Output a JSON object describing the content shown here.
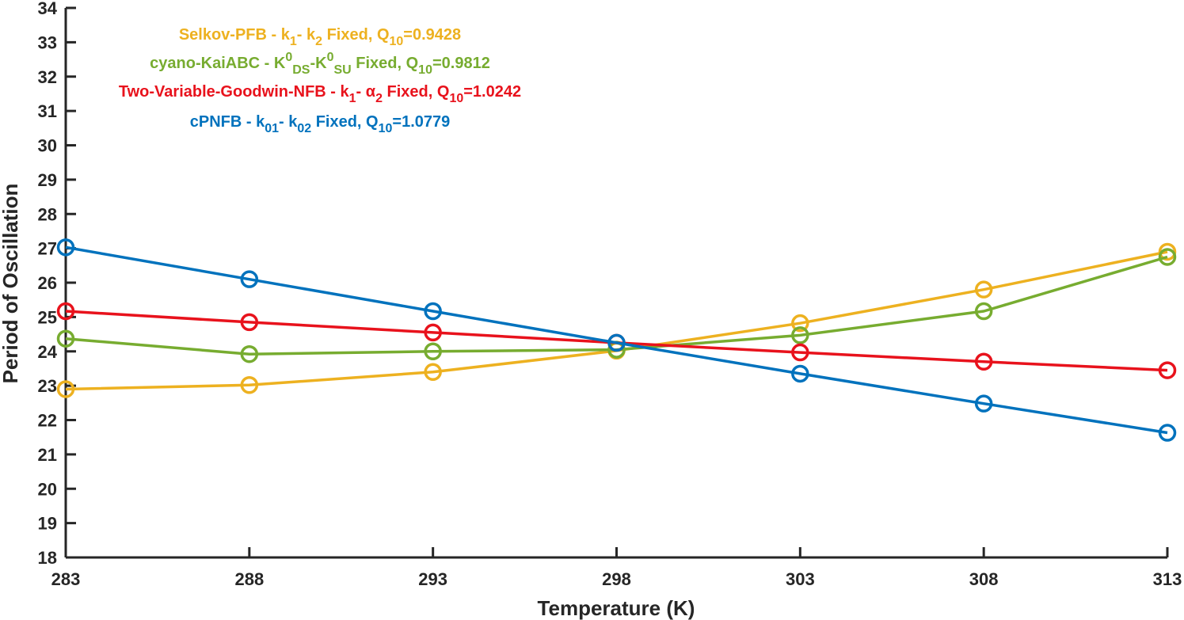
{
  "chart_data": {
    "type": "line",
    "xlabel": "Temperature (K)",
    "ylabel": "Period of Oscillation",
    "xlim": [
      283,
      313
    ],
    "ylim": [
      18,
      34
    ],
    "x": [
      283,
      288,
      293,
      298,
      303,
      308,
      313
    ],
    "x_tick_labels": [
      "283",
      "288",
      "293",
      "298",
      "303",
      "308",
      "313"
    ],
    "y_tick_labels": [
      "18",
      "19",
      "20",
      "21",
      "22",
      "23",
      "24",
      "25",
      "26",
      "27",
      "28",
      "29",
      "30",
      "31",
      "32",
      "33",
      "34"
    ],
    "grid": false,
    "legend_placement": "top-left",
    "series": [
      {
        "color": "#EDB120",
        "values": [
          22.9,
          23.02,
          23.4,
          24.02,
          24.82,
          25.8,
          26.9
        ],
        "legend": [
          {
            "t": "Selkov-PFB - k"
          },
          {
            "t": "1",
            "sub": true
          },
          {
            "t": "- k"
          },
          {
            "t": "2",
            "sub": true
          },
          {
            "t": " Fixed, Q"
          },
          {
            "t": "10",
            "sub": true
          },
          {
            "t": "=0.9428"
          }
        ]
      },
      {
        "color": "#77AC30",
        "values": [
          24.37,
          23.92,
          24.0,
          24.05,
          24.47,
          25.17,
          26.75
        ],
        "legend": [
          {
            "t": "cyano-KaiABC - K"
          },
          {
            "t": "0",
            "sup": true
          },
          {
            "t": "DS",
            "sub": true
          },
          {
            "t": "-K"
          },
          {
            "t": "0",
            "sup": true
          },
          {
            "t": "SU",
            "sub": true
          },
          {
            "t": " Fixed, Q"
          },
          {
            "t": "10",
            "sub": true
          },
          {
            "t": "=0.9812"
          }
        ]
      },
      {
        "color": "#E8121C",
        "values": [
          25.17,
          24.85,
          24.55,
          24.25,
          23.97,
          23.7,
          23.45
        ],
        "legend": [
          {
            "t": "Two-Variable-Goodwin-NFB - k"
          },
          {
            "t": "1",
            "sub": true
          },
          {
            "t": "- α"
          },
          {
            "t": "2",
            "sub": true
          },
          {
            "t": " Fixed, Q"
          },
          {
            "t": "10",
            "sub": true
          },
          {
            "t": "=1.0242"
          }
        ]
      },
      {
        "color": "#0072BD",
        "values": [
          27.03,
          26.1,
          25.17,
          24.25,
          23.35,
          22.48,
          21.63
        ],
        "legend": [
          {
            "t": "cPNFB - k"
          },
          {
            "t": "01",
            "sub": true
          },
          {
            "t": "- k"
          },
          {
            "t": "02",
            "sub": true
          },
          {
            "t": " Fixed, Q"
          },
          {
            "t": "10",
            "sub": true
          },
          {
            "t": "=1.0779"
          }
        ]
      }
    ]
  }
}
